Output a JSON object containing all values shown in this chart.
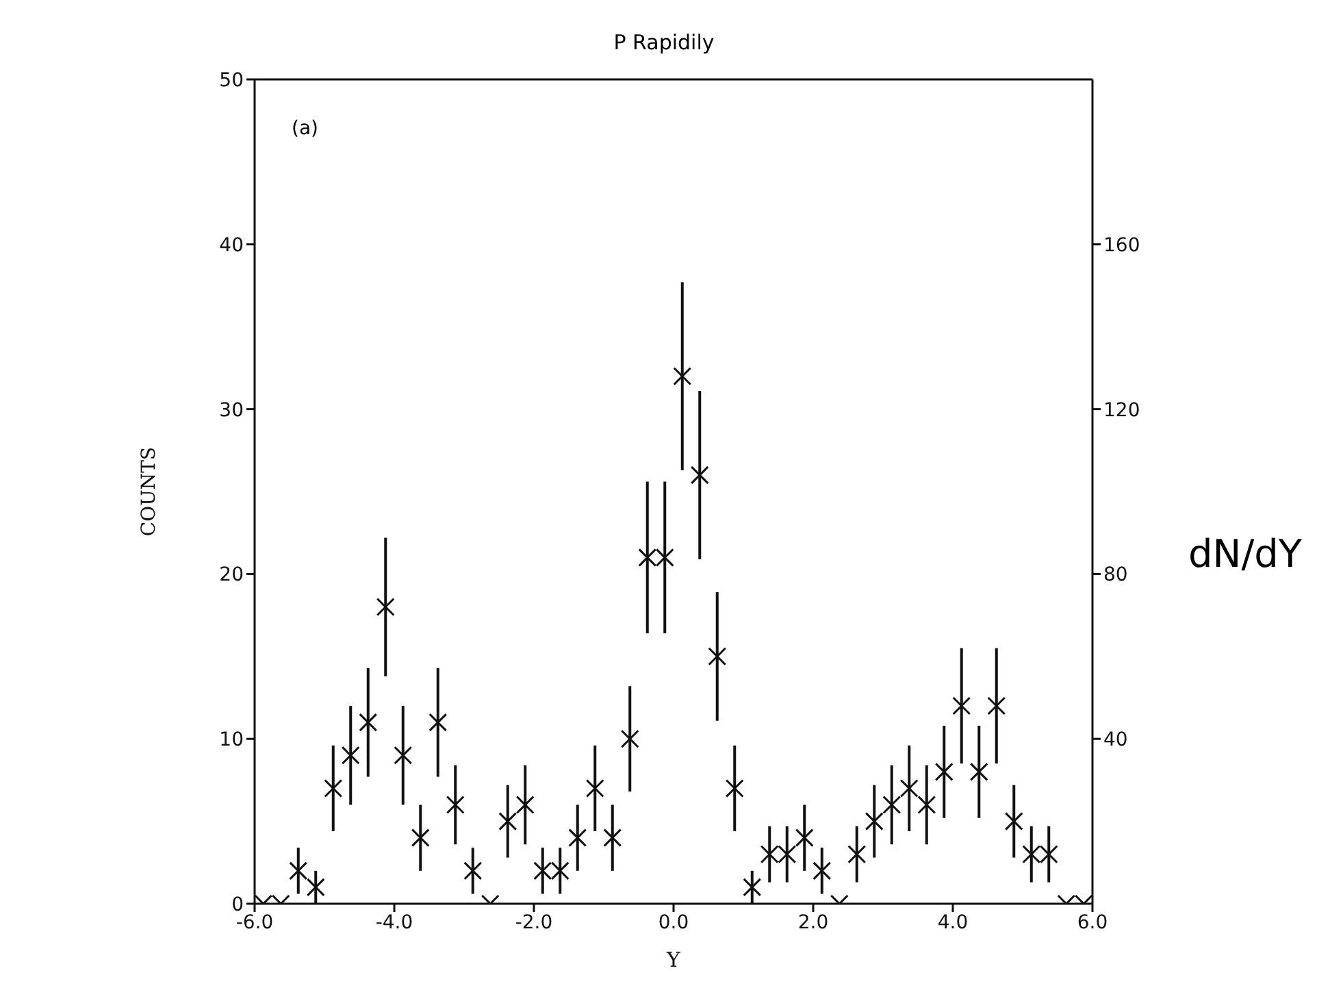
{
  "chart_data": {
    "type": "scatter",
    "title": "P Rapidily",
    "xlabel": "Y",
    "ylabel": "COUNTS",
    "y2label": "dN/dY",
    "annotations": [
      "(a)"
    ],
    "x": [
      -5.875,
      -5.625,
      -5.375,
      -5.125,
      -4.875,
      -4.625,
      -4.375,
      -4.125,
      -3.875,
      -3.625,
      -3.375,
      -3.125,
      -2.875,
      -2.625,
      -2.375,
      -2.125,
      -1.875,
      -1.625,
      -1.375,
      -1.125,
      -0.875,
      -0.625,
      -0.375,
      -0.125,
      0.125,
      0.375,
      0.625,
      0.875,
      1.125,
      1.375,
      1.625,
      1.875,
      2.125,
      2.375,
      2.625,
      2.875,
      3.125,
      3.375,
      3.625,
      3.875,
      4.125,
      4.375,
      4.625,
      4.875,
      5.125,
      5.375,
      5.625,
      5.875
    ],
    "values": [
      0,
      0,
      2,
      1,
      7,
      9,
      11,
      18,
      9,
      4,
      11,
      6,
      2,
      0,
      5,
      6,
      2,
      2,
      4,
      7,
      4,
      10,
      21,
      21,
      32,
      26,
      15,
      7,
      1,
      3,
      3,
      4,
      2,
      0,
      3,
      5,
      6,
      7,
      6,
      8,
      12,
      8,
      12,
      5,
      3,
      3,
      0,
      0
    ],
    "errors": [
      null,
      null,
      1.4,
      1,
      2.6,
      3,
      3.3,
      4.2,
      3,
      2,
      3.3,
      2.4,
      1.4,
      null,
      2.2,
      2.4,
      1.4,
      1.4,
      2,
      2.6,
      2,
      3.2,
      4.6,
      4.6,
      5.7,
      5.1,
      3.9,
      2.6,
      1,
      1.7,
      1.7,
      2,
      1.4,
      null,
      1.7,
      2.2,
      2.4,
      2.6,
      2.4,
      2.8,
      3.5,
      2.8,
      3.5,
      2.2,
      1.7,
      1.7,
      null,
      null
    ],
    "color": "#111111",
    "marker": "cross",
    "xlim": [
      -6,
      6
    ],
    "xticks": [
      {
        "value": -6,
        "label": "-6.0"
      },
      {
        "value": -4,
        "label": "-4.0"
      },
      {
        "value": -2,
        "label": "-2.0"
      },
      {
        "value": 0,
        "label": "0.0"
      },
      {
        "value": 2,
        "label": "2.0"
      },
      {
        "value": 4,
        "label": "4.0"
      },
      {
        "value": 6,
        "label": "6.0"
      }
    ],
    "ylim": [
      0,
      50
    ],
    "yticks": [
      0,
      10,
      20,
      30,
      40,
      50
    ],
    "y2lim": [
      0,
      200
    ],
    "y2ticks": [
      40,
      80,
      120,
      160
    ],
    "legend": false
  }
}
